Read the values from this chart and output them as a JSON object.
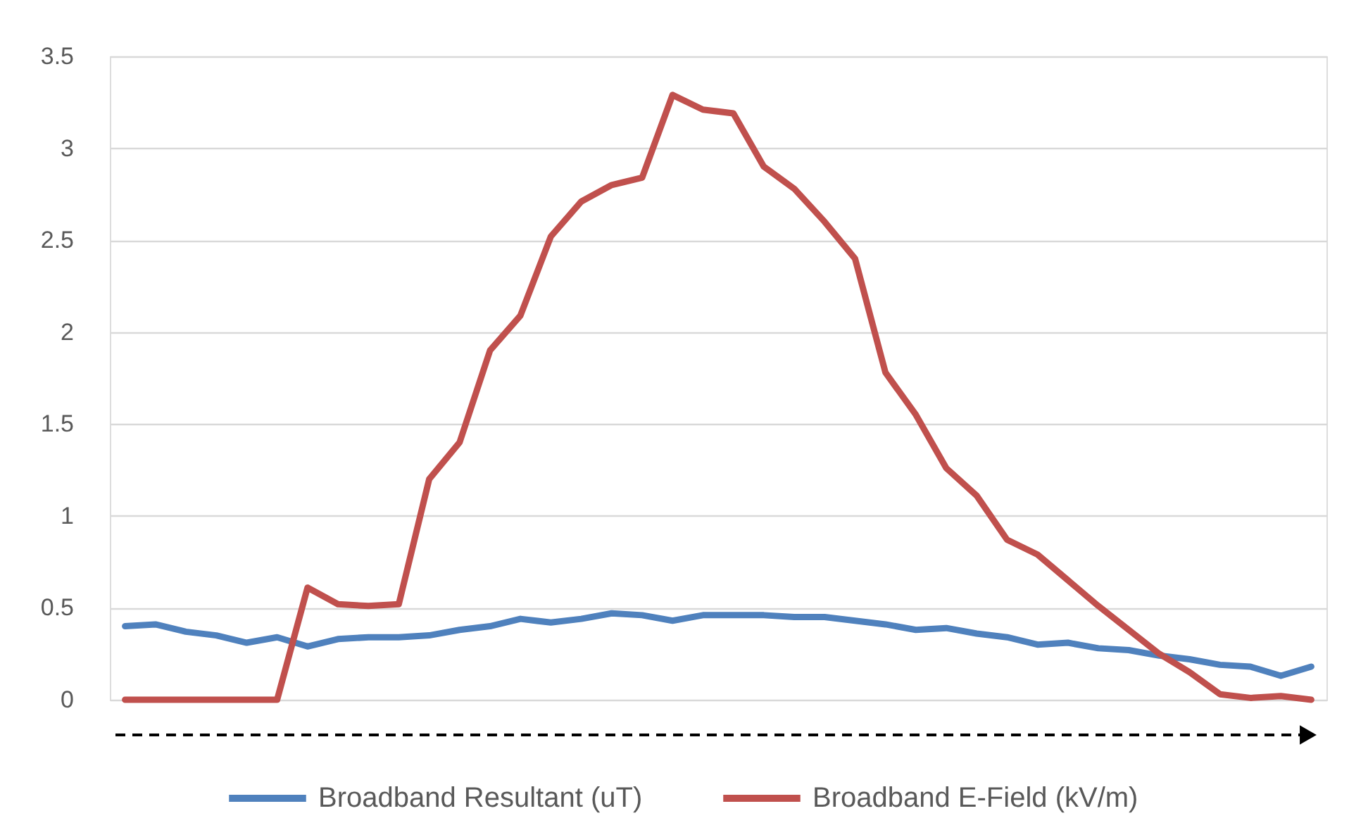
{
  "chart_data": {
    "type": "line",
    "categories": [
      null,
      null,
      null,
      null,
      null,
      null,
      null,
      null,
      null,
      null,
      null,
      null,
      null,
      null,
      null,
      null,
      null,
      null,
      null,
      null,
      null,
      null,
      null,
      null,
      null,
      null,
      null,
      null,
      null,
      null,
      null,
      null,
      null,
      null,
      null,
      null,
      null,
      null,
      null,
      null
    ],
    "series": [
      {
        "name": "Broadband Resultant (uT)",
        "color": "#4f81bd",
        "values": [
          0.4,
          0.41,
          0.37,
          0.35,
          0.31,
          0.34,
          0.29,
          0.33,
          0.34,
          0.34,
          0.35,
          0.38,
          0.4,
          0.44,
          0.42,
          0.44,
          0.47,
          0.46,
          0.43,
          0.46,
          0.46,
          0.46,
          0.45,
          0.45,
          0.43,
          0.41,
          0.38,
          0.39,
          0.36,
          0.34,
          0.3,
          0.31,
          0.28,
          0.27,
          0.24,
          0.22,
          0.19,
          0.18,
          0.13,
          0.18
        ]
      },
      {
        "name": "Broadband E-Field (kV/m)",
        "color": "#c0504d",
        "values": [
          0,
          0,
          0,
          0,
          0,
          0,
          0.61,
          0.52,
          0.51,
          0.52,
          1.2,
          1.4,
          1.9,
          2.09,
          2.52,
          2.71,
          2.8,
          2.84,
          3.29,
          3.21,
          3.19,
          2.9,
          2.78,
          2.6,
          2.4,
          1.78,
          1.55,
          1.26,
          1.11,
          0.87,
          0.79,
          0.65,
          0.51,
          0.38,
          0.25,
          0.15,
          0.03,
          0.01,
          0.02,
          0
        ]
      }
    ],
    "ylim": [
      0,
      3.5
    ],
    "yticks": [
      0,
      0.5,
      1,
      1.5,
      2,
      2.5,
      3,
      3.5
    ],
    "grid": "y",
    "legend": "bottom",
    "tick_labels": "y",
    "marker": "none",
    "line_style": "solid"
  }
}
